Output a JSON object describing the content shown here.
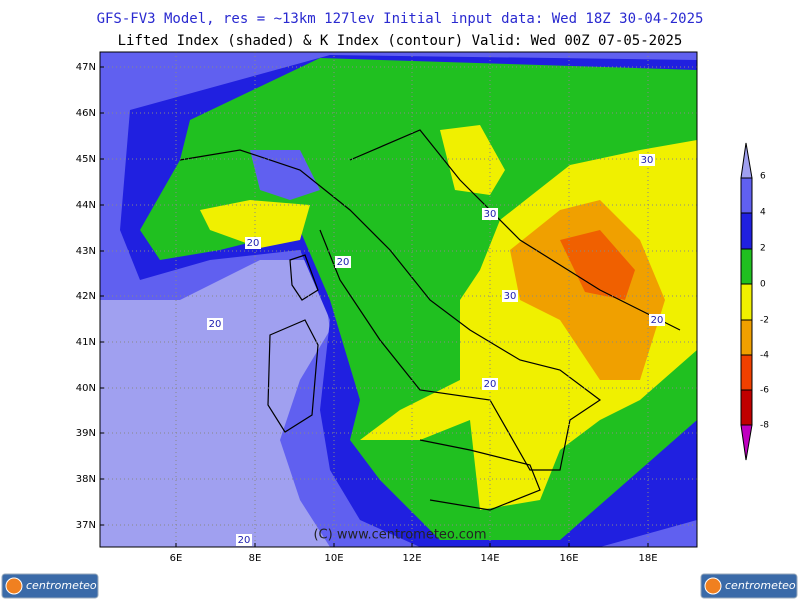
{
  "header": {
    "line1": "GFS-FV3 Model, res = ~13km 127lev    Initial input data: Wed 18Z 30-04-2025",
    "line2": "Lifted Index (shaded) & K Index (contour) Valid: Wed 00Z 07-05-2025"
  },
  "map": {
    "lat_labels": [
      "47N",
      "46N",
      "45N",
      "44N",
      "43N",
      "42N",
      "41N",
      "40N",
      "39N",
      "38N",
      "37N"
    ],
    "lon_labels": [
      "6E",
      "8E",
      "10E",
      "12E",
      "14E",
      "16E",
      "18E"
    ],
    "contour_labels": [
      "30",
      "30",
      "30",
      "20",
      "20",
      "20",
      "20",
      "20",
      "20"
    ],
    "watermark": "(C) www.centrometeo.com"
  },
  "colorbar": {
    "labels": [
      6,
      4,
      2,
      0,
      -2,
      -4,
      -6,
      -8
    ]
  },
  "logos": {
    "left": "centrometeo",
    "right": "centrometeo"
  }
}
